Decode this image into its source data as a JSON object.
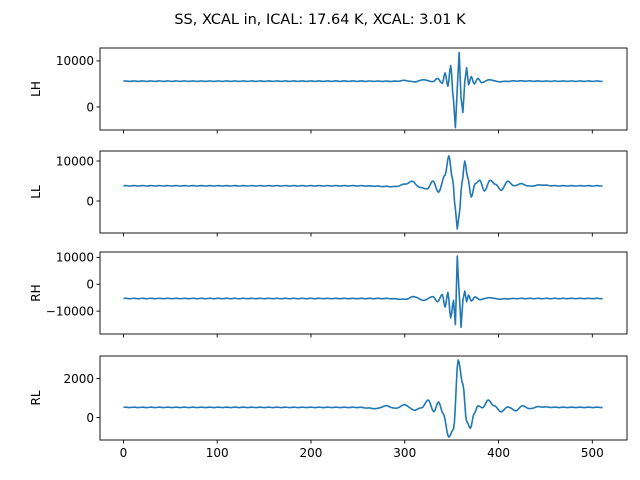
{
  "chart_data": {
    "type": "line",
    "title": "SS, XCAL in, ICAL: 17.64 K, XCAL: 3.01 K",
    "color": "#1f77b4",
    "sharex": true,
    "xlim": [
      -25,
      537
    ],
    "xticks": [
      0,
      100,
      200,
      300,
      400,
      500
    ],
    "xtick_labels": [
      "0",
      "100",
      "200",
      "300",
      "400",
      "500"
    ],
    "x_range": [
      0,
      511
    ],
    "grid": false,
    "panels": [
      {
        "name": "LH",
        "ylabel": "LH",
        "ylim": [
          -5000,
          12800
        ],
        "yticks": [
          10000,
          0
        ],
        "ytick_labels": [
          "10000",
          "0"
        ],
        "baseline": 5600,
        "center_index": 355,
        "points": [
          [
            0,
            5600
          ],
          [
            250,
            5600
          ],
          [
            290,
            5580
          ],
          [
            300,
            5750
          ],
          [
            310,
            5450
          ],
          [
            320,
            5900
          ],
          [
            330,
            5500
          ],
          [
            335,
            6200
          ],
          [
            340,
            5100
          ],
          [
            343,
            7400
          ],
          [
            346,
            4500
          ],
          [
            349,
            9000
          ],
          [
            352,
            1500
          ],
          [
            354,
            -4500
          ],
          [
            356,
            4000
          ],
          [
            358,
            11800
          ],
          [
            360,
            2000
          ],
          [
            362,
            -1200
          ],
          [
            364,
            5500
          ],
          [
            366,
            8500
          ],
          [
            368,
            4800
          ],
          [
            371,
            6600
          ],
          [
            374,
            5000
          ],
          [
            378,
            6200
          ],
          [
            382,
            5300
          ],
          [
            390,
            5900
          ],
          [
            400,
            5500
          ],
          [
            420,
            5650
          ],
          [
            450,
            5600
          ],
          [
            511,
            5600
          ]
        ]
      },
      {
        "name": "LL",
        "ylabel": "LL",
        "ylim": [
          -8000,
          12500
        ],
        "yticks": [
          10000,
          0
        ],
        "ytick_labels": [
          "10000",
          "0"
        ],
        "baseline": 3800,
        "center_index": 355,
        "points": [
          [
            0,
            3800
          ],
          [
            250,
            3800
          ],
          [
            290,
            3600
          ],
          [
            300,
            4200
          ],
          [
            308,
            4900
          ],
          [
            316,
            3400
          ],
          [
            324,
            3000
          ],
          [
            330,
            5000
          ],
          [
            336,
            2200
          ],
          [
            343,
            6500
          ],
          [
            347,
            11300
          ],
          [
            351,
            5500
          ],
          [
            354,
            -2000
          ],
          [
            356,
            -7000
          ],
          [
            358,
            -3500
          ],
          [
            361,
            4500
          ],
          [
            364,
            10000
          ],
          [
            367,
            6000
          ],
          [
            371,
            1000
          ],
          [
            375,
            4300
          ],
          [
            380,
            5200
          ],
          [
            385,
            2500
          ],
          [
            391,
            5200
          ],
          [
            397,
            4100
          ],
          [
            403,
            2700
          ],
          [
            410,
            5000
          ],
          [
            416,
            3800
          ],
          [
            424,
            4300
          ],
          [
            433,
            3700
          ],
          [
            445,
            4000
          ],
          [
            460,
            3800
          ],
          [
            511,
            3800
          ]
        ]
      },
      {
        "name": "RH",
        "ylabel": "RH",
        "ylim": [
          -18500,
          12000
        ],
        "yticks": [
          10000,
          0,
          -10000
        ],
        "ytick_labels": [
          "10000",
          "0",
          "−10000"
        ],
        "baseline": -5300,
        "center_index": 355,
        "points": [
          [
            0,
            -5300
          ],
          [
            280,
            -5300
          ],
          [
            300,
            -5600
          ],
          [
            310,
            -4600
          ],
          [
            320,
            -6000
          ],
          [
            330,
            -4600
          ],
          [
            335,
            -6500
          ],
          [
            340,
            -3800
          ],
          [
            343,
            -8500
          ],
          [
            346,
            -3000
          ],
          [
            349,
            -12500
          ],
          [
            352,
            -6000
          ],
          [
            354,
            -15000
          ],
          [
            356,
            10500
          ],
          [
            357,
            3000
          ],
          [
            359,
            -9000
          ],
          [
            360,
            -16000
          ],
          [
            362,
            -6000
          ],
          [
            364,
            -2500
          ],
          [
            366,
            -6500
          ],
          [
            368,
            -4000
          ],
          [
            371,
            -6200
          ],
          [
            375,
            -4700
          ],
          [
            380,
            -5700
          ],
          [
            390,
            -5000
          ],
          [
            400,
            -5500
          ],
          [
            420,
            -5300
          ],
          [
            511,
            -5300
          ]
        ]
      },
      {
        "name": "RL",
        "ylabel": "RL",
        "ylim": [
          -1150,
          3150
        ],
        "yticks": [
          2000,
          0
        ],
        "ytick_labels": [
          "2000",
          "0"
        ],
        "baseline": 520,
        "center_index": 355,
        "points": [
          [
            0,
            520
          ],
          [
            250,
            520
          ],
          [
            270,
            460
          ],
          [
            280,
            600
          ],
          [
            290,
            470
          ],
          [
            300,
            650
          ],
          [
            310,
            380
          ],
          [
            318,
            500
          ],
          [
            325,
            900
          ],
          [
            331,
            300
          ],
          [
            336,
            800
          ],
          [
            341,
            200
          ],
          [
            347,
            -1000
          ],
          [
            352,
            -600
          ],
          [
            357,
            2950
          ],
          [
            362,
            1700
          ],
          [
            366,
            -200
          ],
          [
            370,
            -550
          ],
          [
            374,
            200
          ],
          [
            378,
            600
          ],
          [
            383,
            500
          ],
          [
            389,
            900
          ],
          [
            395,
            600
          ],
          [
            403,
            300
          ],
          [
            410,
            550
          ],
          [
            418,
            350
          ],
          [
            426,
            600
          ],
          [
            433,
            450
          ],
          [
            442,
            550
          ],
          [
            460,
            520
          ],
          [
            511,
            520
          ]
        ]
      }
    ]
  }
}
